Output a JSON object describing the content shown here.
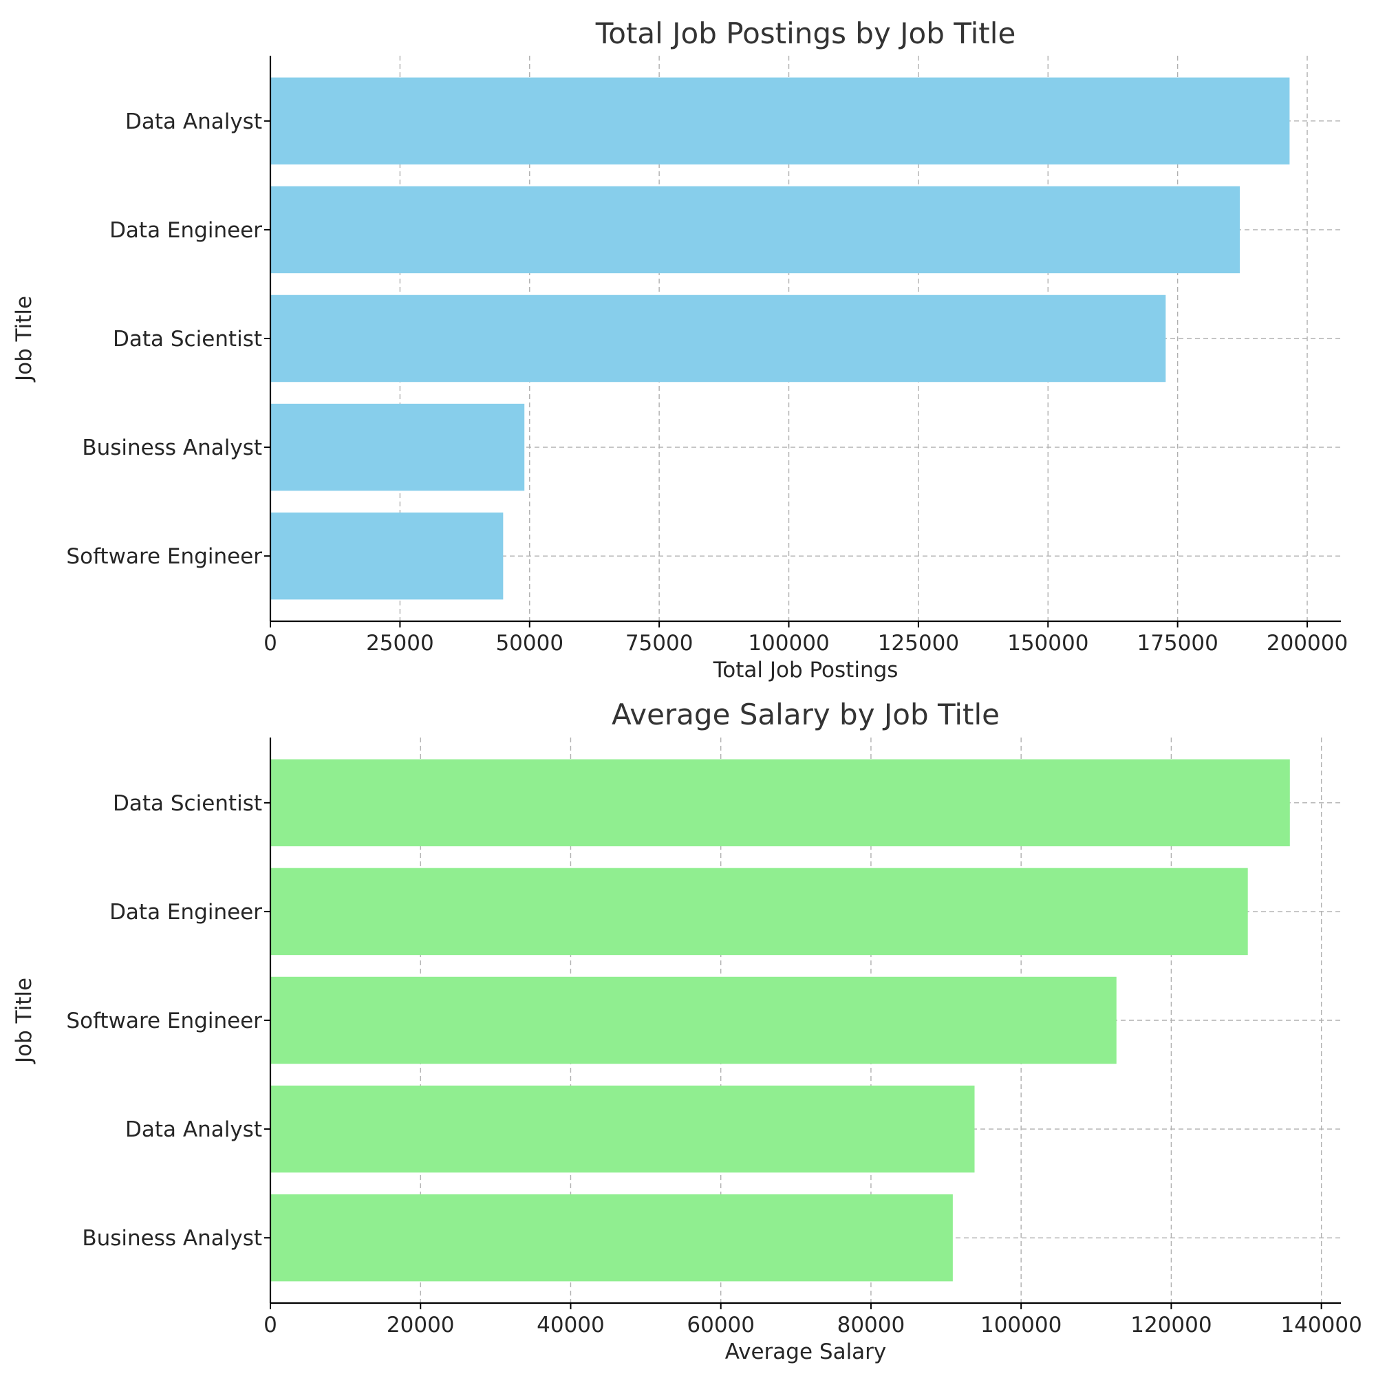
{
  "chart_data": [
    {
      "type": "bar",
      "orientation": "horizontal",
      "title": "Total Job Postings by Job Title",
      "xlabel": "Total Job Postings",
      "ylabel": "Job Title",
      "categories": [
        "Data Analyst",
        "Data Engineer",
        "Data Scientist",
        "Business Analyst",
        "Software Engineer"
      ],
      "values": [
        196600,
        187000,
        172700,
        49000,
        44900
      ],
      "xlim": [
        0,
        206500
      ],
      "xticks": [
        0,
        25000,
        50000,
        75000,
        100000,
        125000,
        150000,
        175000,
        200000
      ],
      "xtick_labels": [
        "0",
        "25000",
        "50000",
        "75000",
        "100000",
        "125000",
        "150000",
        "175000",
        "200000"
      ],
      "grid": true,
      "color": "#87ceeb"
    },
    {
      "type": "bar",
      "orientation": "horizontal",
      "title": "Average Salary by Job Title",
      "xlabel": "Average Salary",
      "ylabel": "Job Title",
      "categories": [
        "Data Scientist",
        "Data Engineer",
        "Software Engineer",
        "Data Analyst",
        "Business Analyst"
      ],
      "values": [
        135800,
        130200,
        112700,
        93800,
        90900
      ],
      "xlim": [
        0,
        142600
      ],
      "xticks": [
        0,
        20000,
        40000,
        60000,
        80000,
        100000,
        120000,
        140000
      ],
      "xtick_labels": [
        "0",
        "20000",
        "40000",
        "60000",
        "80000",
        "100000",
        "120000",
        "140000"
      ],
      "grid": true,
      "color": "#90ee90"
    }
  ]
}
